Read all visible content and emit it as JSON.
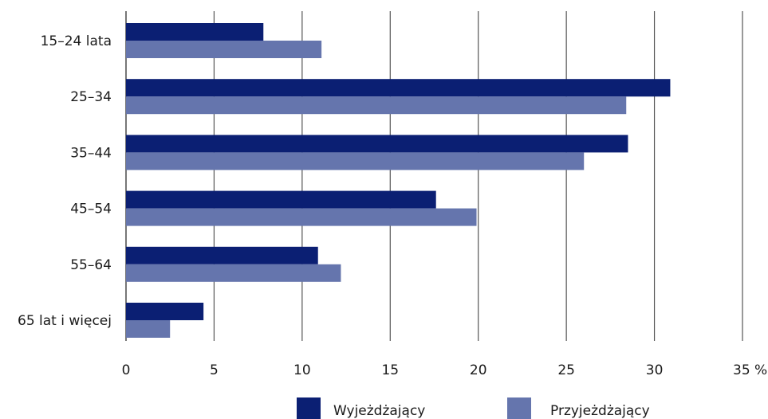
{
  "chart_data": {
    "type": "bar",
    "orientation": "horizontal",
    "categories": [
      "15–24 lata",
      "25–34",
      "35–44",
      "45–54",
      "55–64",
      "65 lat i więcej"
    ],
    "series": [
      {
        "name": "Wyjeżdżający",
        "color": "#0b1f73",
        "values": [
          7.8,
          30.9,
          28.5,
          17.6,
          10.9,
          4.4
        ]
      },
      {
        "name": "Przyjeżdżający",
        "color": "#6575ad",
        "values": [
          11.1,
          28.4,
          26.0,
          19.9,
          12.2,
          2.5
        ]
      }
    ],
    "xlim": [
      0,
      35
    ],
    "xticks": [
      0,
      5,
      10,
      15,
      20,
      25,
      30,
      35
    ],
    "xtick_labels": [
      "0",
      "5",
      "10",
      "15",
      "20",
      "25",
      "30",
      "35 %"
    ],
    "grid": "vertical",
    "legend_position": "bottom"
  }
}
